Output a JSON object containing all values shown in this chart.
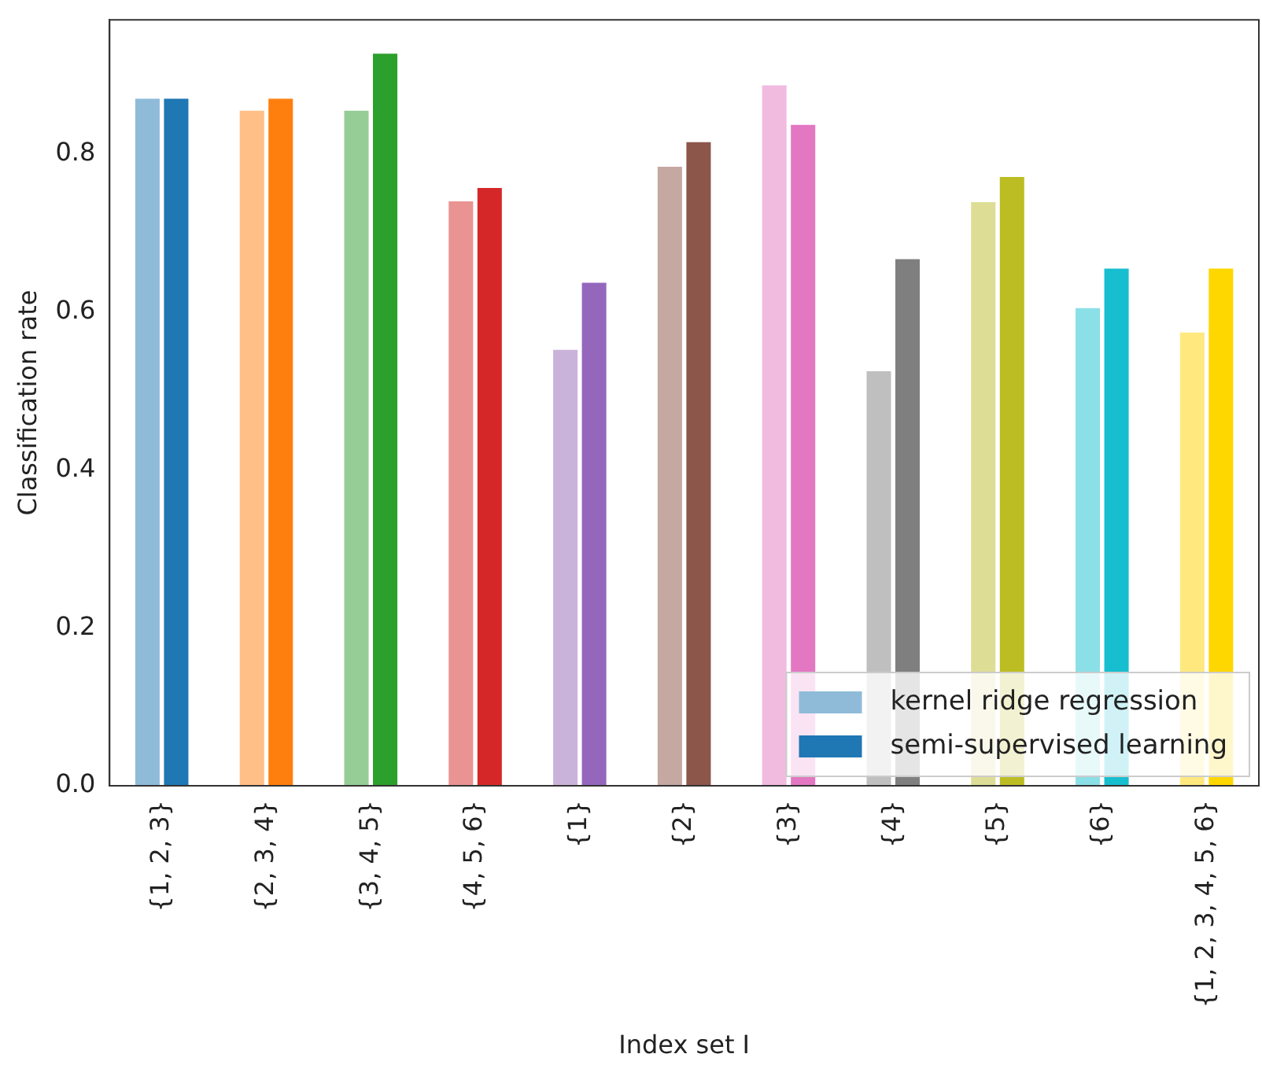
{
  "chart_data": {
    "type": "bar",
    "xlabel": "Index set I",
    "ylabel": "Classification rate",
    "categories": [
      "{1, 2, 3}",
      "{2, 3, 4}",
      "{3, 4, 5}",
      "{4, 5, 6}",
      "{1}",
      "{2}",
      "{3}",
      "{4}",
      "{5}",
      "{6}",
      "{1, 2, 3, 4, 5, 6}"
    ],
    "series": [
      {
        "name": "kernel ridge regression",
        "color": "#8fbbd9",
        "colors": [
          "#8fbbd9",
          "#ffbf86",
          "#96cd96",
          "#ea9393",
          "#cab3da",
          "#c5a8a2",
          "#f1bbe0",
          "#bfbfbf",
          "#dedd95",
          "#8bdfe7",
          "#ffe97f"
        ],
        "values": [
          0.87,
          0.855,
          0.855,
          0.74,
          0.552,
          0.784,
          0.887,
          0.525,
          0.739,
          0.605,
          0.574
        ]
      },
      {
        "name": "semi-supervised learning",
        "color": "#1f77b4",
        "colors": [
          "#1f77b4",
          "#ff7f0e",
          "#2ca02c",
          "#d62728",
          "#9467bd",
          "#8c564b",
          "#e377c2",
          "#7f7f7f",
          "#bcbd22",
          "#17becf",
          "#ffd700"
        ],
        "values": [
          0.87,
          0.87,
          0.927,
          0.757,
          0.637,
          0.815,
          0.837,
          0.667,
          0.771,
          0.655,
          0.655
        ]
      }
    ],
    "ylim": [
      0,
      0.97
    ],
    "yticks": [
      {
        "value": 0,
        "label": "0.0"
      },
      {
        "value": 0.2,
        "label": "0.2"
      },
      {
        "value": 0.4,
        "label": "0.4"
      },
      {
        "value": 0.6,
        "label": "0.6"
      },
      {
        "value": 0.8,
        "label": "0.8"
      }
    ],
    "grid": false,
    "legend": "bottom right"
  }
}
